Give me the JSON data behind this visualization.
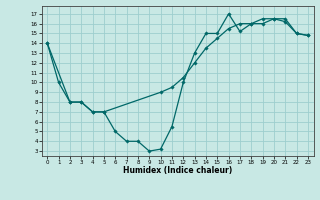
{
  "xlabel": "Humidex (Indice chaleur)",
  "bg_color": "#c8e8e4",
  "grid_color": "#9ecece",
  "line_color": "#006868",
  "xlim": [
    -0.5,
    23.5
  ],
  "ylim": [
    2.5,
    17.8
  ],
  "xticks": [
    0,
    1,
    2,
    3,
    4,
    5,
    6,
    7,
    8,
    9,
    10,
    11,
    12,
    13,
    14,
    15,
    16,
    17,
    18,
    19,
    20,
    21,
    22,
    23
  ],
  "yticks": [
    3,
    4,
    5,
    6,
    7,
    8,
    9,
    10,
    11,
    12,
    13,
    14,
    15,
    16,
    17
  ],
  "line1_x": [
    0,
    1,
    2,
    3,
    4,
    5,
    6,
    7,
    8,
    9,
    10,
    11,
    12,
    13,
    14,
    15,
    16,
    17,
    18,
    19,
    20,
    21,
    22,
    23
  ],
  "line1_y": [
    14,
    10,
    8,
    8,
    7,
    7,
    5,
    4,
    4,
    3,
    3.2,
    5.5,
    10,
    13,
    15,
    15,
    17,
    15.2,
    16,
    16,
    16.5,
    16.2,
    15,
    14.8
  ],
  "line2_x": [
    0,
    2,
    3,
    4,
    5,
    10,
    11,
    12,
    13,
    14,
    15,
    16,
    17,
    18,
    19,
    20,
    21,
    22,
    23
  ],
  "line2_y": [
    14,
    8,
    8,
    7,
    7,
    9,
    9.5,
    10.5,
    12,
    13.5,
    14.5,
    15.5,
    16,
    16,
    16.5,
    16.5,
    16.5,
    15,
    14.8
  ]
}
